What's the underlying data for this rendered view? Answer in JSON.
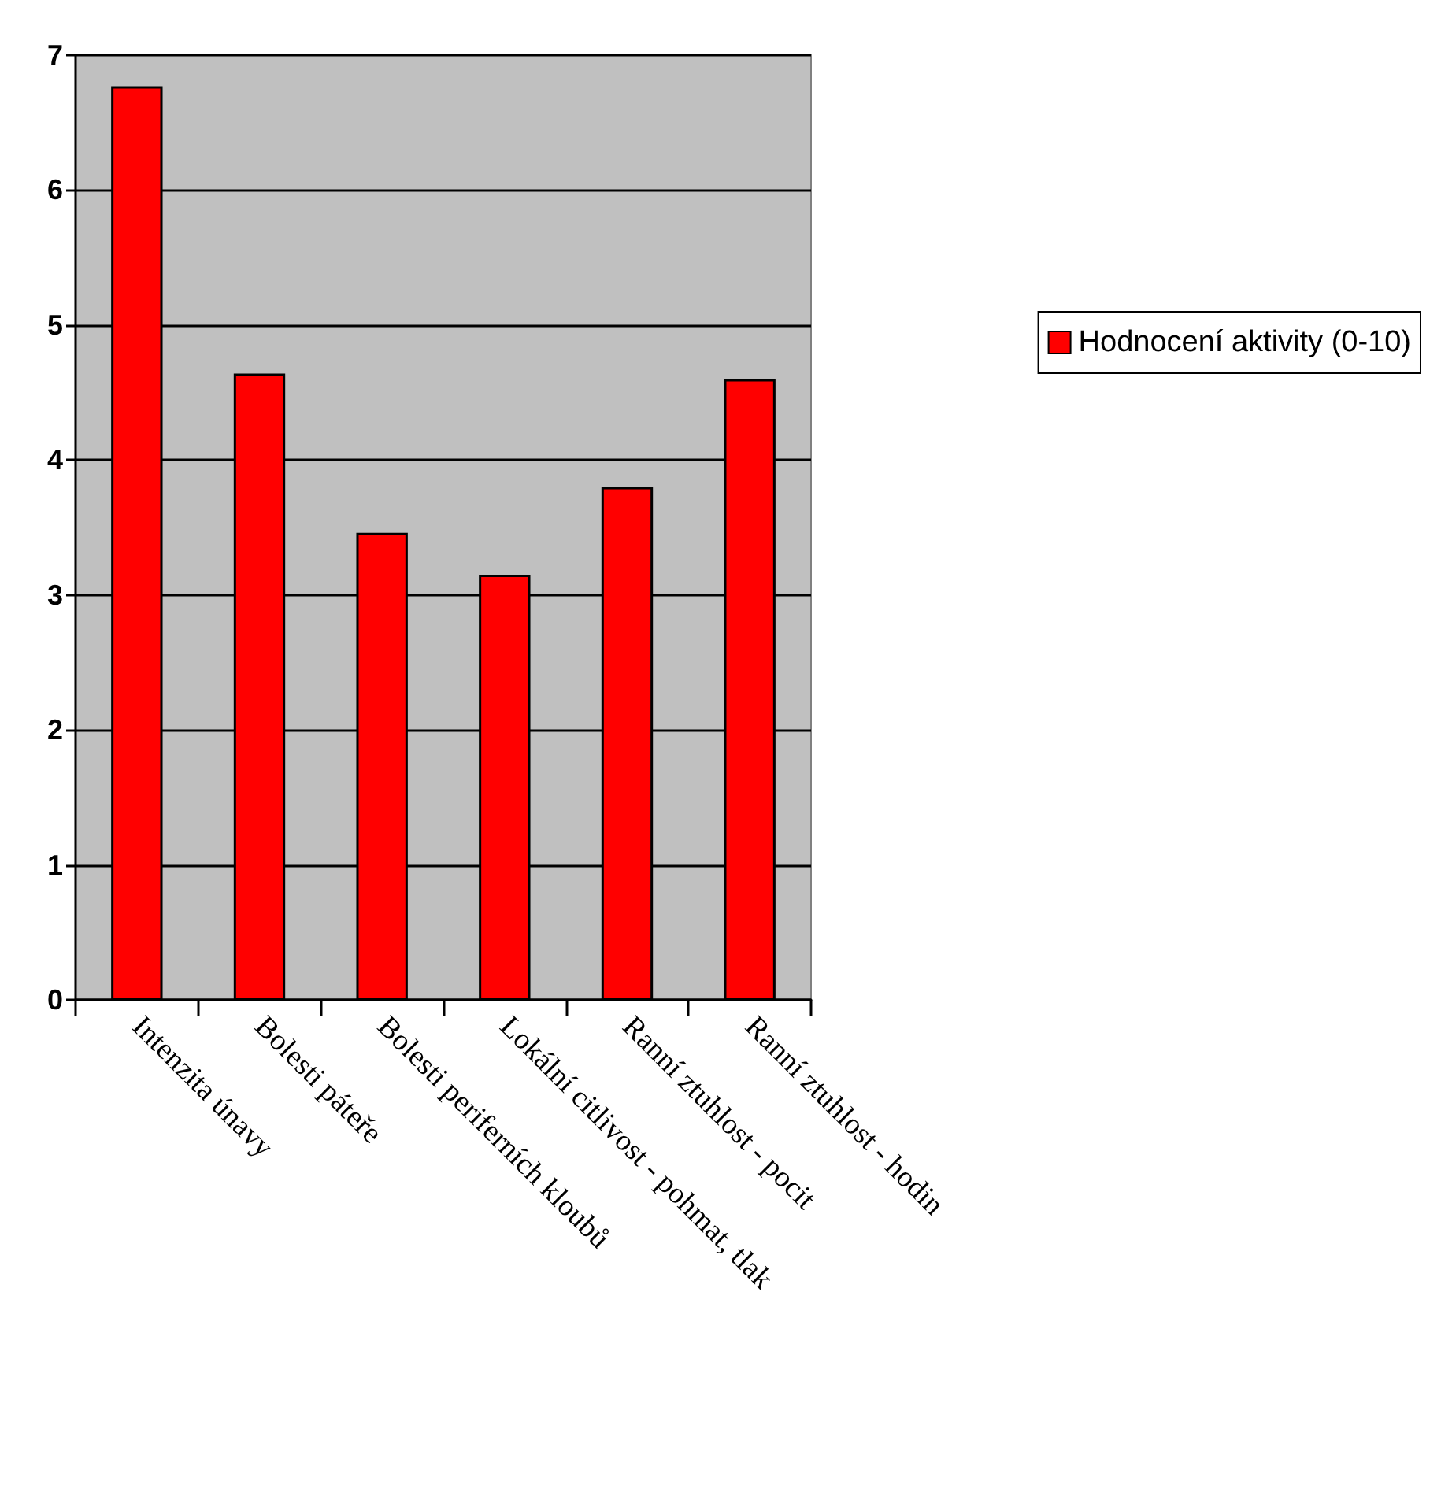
{
  "chart_data": {
    "type": "bar",
    "categories": [
      "Intenzita únavy",
      "Bolesti páteře",
      "Bolesti periferních kloubů",
      "Lokální citlivost - pohmat, tlak",
      "Ranní ztuhlost - pocit",
      "Ranní ztuhlost - hodin"
    ],
    "series": [
      {
        "name": "Hodnocení aktivity (0-10)",
        "color": "#ff0000",
        "values": [
          6.77,
          4.64,
          3.46,
          3.15,
          3.8,
          4.6
        ]
      }
    ],
    "ylim": [
      0,
      7
    ],
    "yticks": [
      0,
      1,
      2,
      3,
      4,
      5,
      6,
      7
    ],
    "grid": "y",
    "legend": "right"
  }
}
